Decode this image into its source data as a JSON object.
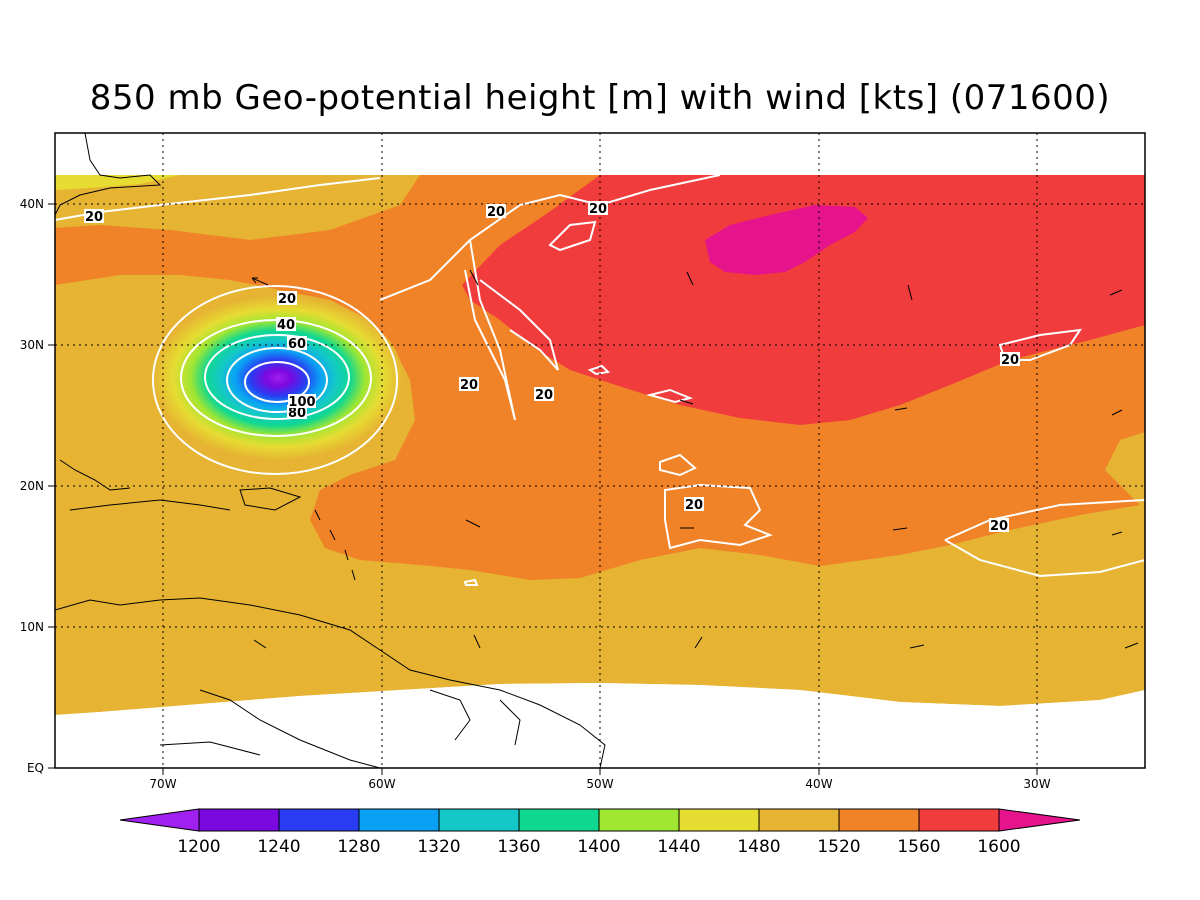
{
  "title": "850 mb Geo-potential height [m] with wind [kts] (071600)",
  "x_ticks": [
    {
      "lon": -70,
      "label": "70W"
    },
    {
      "lon": -60,
      "label": "60W"
    },
    {
      "lon": -50,
      "label": "50W"
    },
    {
      "lon": -40,
      "label": "40W"
    },
    {
      "lon": -30,
      "label": "30W"
    }
  ],
  "y_ticks": [
    {
      "lat": 0,
      "label": "EQ"
    },
    {
      "lat": 10,
      "label": "10N"
    },
    {
      "lat": 20,
      "label": "20N"
    },
    {
      "lat": 30,
      "label": "30N"
    },
    {
      "lat": 40,
      "label": "40N"
    }
  ],
  "colorbar": {
    "levels": [
      "1200",
      "1240",
      "1280",
      "1320",
      "1360",
      "1400",
      "1440",
      "1480",
      "1520",
      "1560",
      "1600"
    ],
    "colors": [
      "#a020f0",
      "#7c08e0",
      "#2a3cf2",
      "#0aa0f5",
      "#14c8c8",
      "#10d890",
      "#a0e632",
      "#e6dc32",
      "#e6b432",
      "#f08228",
      "#f03c3c",
      "#e6148c"
    ]
  },
  "wind_contour_labels": [
    "20",
    "20",
    "20",
    "20",
    "20",
    "40",
    "60",
    "80",
    "100",
    "20",
    "20",
    "20",
    "20"
  ]
}
